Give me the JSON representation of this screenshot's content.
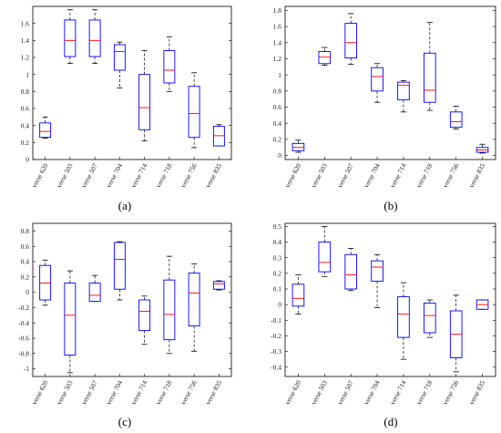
{
  "chart_data": [
    {
      "type": "box",
      "panel_label": "(a)",
      "categories": [
        "verse 620",
        "verse 503",
        "verse 507",
        "verse 704",
        "verse 714",
        "verse 718",
        "verse 756",
        "verse 835"
      ],
      "ylim": [
        0,
        1.8
      ],
      "yticks": [
        0,
        0.2,
        0.4,
        0.6,
        0.8,
        1,
        1.2,
        1.4,
        1.6
      ],
      "ytick_labels": [
        "0",
        "0.2",
        "0.4",
        "0.6",
        "0.8",
        "1",
        "1.2",
        "1.4",
        "1.6"
      ],
      "boxes": [
        {
          "whislo": 0.25,
          "q1": 0.26,
          "med": 0.33,
          "q3": 0.43,
          "whishi": 0.5
        },
        {
          "whislo": 1.13,
          "q1": 1.21,
          "med": 1.4,
          "q3": 1.64,
          "whishi": 1.76
        },
        {
          "whislo": 1.13,
          "q1": 1.21,
          "med": 1.4,
          "q3": 1.64,
          "whishi": 1.76
        },
        {
          "whislo": 0.84,
          "q1": 1.05,
          "med": 1.27,
          "q3": 1.35,
          "whishi": 1.38
        },
        {
          "whislo": 0.22,
          "q1": 0.35,
          "med": 0.61,
          "q3": 1.0,
          "whishi": 1.28
        },
        {
          "whislo": 0.8,
          "q1": 0.9,
          "med": 1.05,
          "q3": 1.28,
          "whishi": 1.44
        },
        {
          "whislo": 0.14,
          "q1": 0.26,
          "med": 0.54,
          "q3": 0.86,
          "whishi": 1.02
        },
        {
          "whislo": 0.16,
          "q1": 0.16,
          "med": 0.28,
          "q3": 0.39,
          "whishi": 0.41
        }
      ],
      "box_color": "#0000ff",
      "median_color": "#ff0000",
      "whisker_color": "#000000"
    },
    {
      "type": "box",
      "panel_label": "(b)",
      "categories": [
        "verse 620",
        "verse 503",
        "verse 507",
        "verse 704",
        "verse 714",
        "verse 718",
        "verse 756",
        "verse 835"
      ],
      "ylim": [
        -0.05,
        1.85
      ],
      "yticks": [
        0,
        0.2,
        0.4,
        0.6,
        0.8,
        1,
        1.2,
        1.4,
        1.6,
        1.8
      ],
      "ytick_labels": [
        "0",
        "0.2",
        "0.4",
        "0.6",
        "0.8",
        "1",
        "1.2",
        "1.4",
        "1.6",
        "1.8"
      ],
      "boxes": [
        {
          "whislo": 0.04,
          "q1": 0.06,
          "med": 0.1,
          "q3": 0.15,
          "whishi": 0.19
        },
        {
          "whislo": 1.12,
          "q1": 1.14,
          "med": 1.22,
          "q3": 1.29,
          "whishi": 1.34
        },
        {
          "whislo": 1.13,
          "q1": 1.21,
          "med": 1.4,
          "q3": 1.64,
          "whishi": 1.76
        },
        {
          "whislo": 0.66,
          "q1": 0.8,
          "med": 0.98,
          "q3": 1.09,
          "whishi": 1.14
        },
        {
          "whislo": 0.54,
          "q1": 0.69,
          "med": 0.87,
          "q3": 0.91,
          "whishi": 0.93
        },
        {
          "whislo": 0.56,
          "q1": 0.66,
          "med": 0.81,
          "q3": 1.27,
          "whishi": 1.65
        },
        {
          "whislo": 0.33,
          "q1": 0.35,
          "med": 0.42,
          "q3": 0.54,
          "whishi": 0.61
        },
        {
          "whislo": 0.03,
          "q1": 0.04,
          "med": 0.07,
          "q3": 0.1,
          "whishi": 0.14
        }
      ],
      "box_color": "#0000ff",
      "median_color": "#ff0000",
      "whisker_color": "#000000"
    },
    {
      "type": "box",
      "panel_label": "(c)",
      "categories": [
        "verse 620",
        "verse 503",
        "verse 507",
        "verse 704",
        "verse 714",
        "verse 718",
        "verse 756",
        "verse 835"
      ],
      "ylim": [
        -1.1,
        0.9
      ],
      "yticks": [
        -1,
        -0.8,
        -0.6,
        -0.4,
        -0.2,
        0,
        0.2,
        0.4,
        0.6,
        0.8
      ],
      "ytick_labels": [
        "-1",
        "-0.8",
        "-0.6",
        "-0.4",
        "-0.2",
        "0",
        "0.2",
        "0.4",
        "0.6",
        "0.8"
      ],
      "boxes": [
        {
          "whislo": -0.17,
          "q1": -0.1,
          "med": 0.12,
          "q3": 0.35,
          "whishi": 0.42
        },
        {
          "whislo": -1.05,
          "q1": -0.82,
          "med": -0.3,
          "q3": 0.12,
          "whishi": 0.28
        },
        {
          "whislo": -0.12,
          "q1": -0.12,
          "med": -0.04,
          "q3": 0.12,
          "whishi": 0.22
        },
        {
          "whislo": -0.1,
          "q1": 0.04,
          "med": 0.43,
          "q3": 0.65,
          "whishi": 0.66
        },
        {
          "whislo": -0.68,
          "q1": -0.5,
          "med": -0.25,
          "q3": -0.1,
          "whishi": -0.05
        },
        {
          "whislo": -0.8,
          "q1": -0.62,
          "med": -0.29,
          "q3": 0.16,
          "whishi": 0.47
        },
        {
          "whislo": -0.77,
          "q1": -0.44,
          "med": -0.01,
          "q3": 0.25,
          "whishi": 0.37
        },
        {
          "whislo": 0.03,
          "q1": 0.04,
          "med": 0.11,
          "q3": 0.14,
          "whishi": 0.15
        }
      ],
      "box_color": "#0000ff",
      "median_color": "#ff0000",
      "whisker_color": "#000000"
    },
    {
      "type": "box",
      "panel_label": "(d)",
      "categories": [
        "verse 620",
        "verse 503",
        "verse 507",
        "verse 704",
        "verse 714",
        "verse 718",
        "verse 756",
        "verse 835"
      ],
      "ylim": [
        -0.46,
        0.52
      ],
      "yticks": [
        -0.4,
        -0.3,
        -0.2,
        -0.1,
        0,
        0.1,
        0.2,
        0.3,
        0.4,
        0.5
      ],
      "ytick_labels": [
        "-0.4",
        "-0.3",
        "-0.2",
        "-0.1",
        "0",
        "0.1",
        "0.2",
        "0.3",
        "0.4",
        "0.5"
      ],
      "boxes": [
        {
          "whislo": -0.06,
          "q1": -0.01,
          "med": 0.04,
          "q3": 0.13,
          "whishi": 0.19
        },
        {
          "whislo": 0.18,
          "q1": 0.21,
          "med": 0.27,
          "q3": 0.4,
          "whishi": 0.5
        },
        {
          "whislo": 0.09,
          "q1": 0.1,
          "med": 0.19,
          "q3": 0.32,
          "whishi": 0.36
        },
        {
          "whislo": -0.02,
          "q1": 0.15,
          "med": 0.24,
          "q3": 0.28,
          "whishi": 0.32
        },
        {
          "whislo": -0.35,
          "q1": -0.21,
          "med": -0.06,
          "q3": 0.05,
          "whishi": 0.14
        },
        {
          "whislo": -0.21,
          "q1": -0.18,
          "med": -0.07,
          "q3": 0.01,
          "whishi": 0.03
        },
        {
          "whislo": -0.43,
          "q1": -0.34,
          "med": -0.19,
          "q3": -0.04,
          "whishi": 0.06
        },
        {
          "whislo": -0.03,
          "q1": -0.03,
          "med": 0.0,
          "q3": 0.03,
          "whishi": 0.03
        }
      ],
      "box_color": "#0000ff",
      "median_color": "#ff0000",
      "whisker_color": "#000000"
    }
  ]
}
